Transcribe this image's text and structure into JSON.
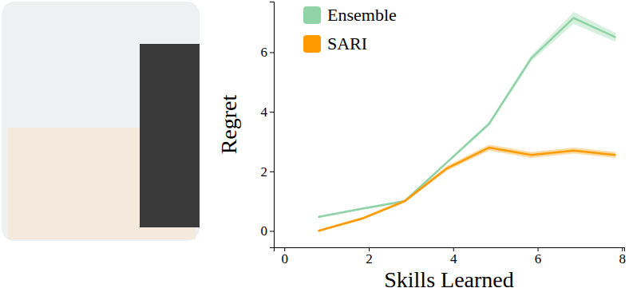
{
  "chart_data": {
    "type": "line",
    "x_label": "Skills Learned",
    "y_label": "Regret",
    "x": [
      0.8,
      1.85,
      2.85,
      3.85,
      4.85,
      5.85,
      6.85,
      7.85
    ],
    "series": [
      {
        "name": "Ensemble",
        "color": "#8fd3a7",
        "values": [
          0.47,
          0.75,
          1.0,
          2.3,
          3.6,
          5.8,
          7.15,
          6.5
        ],
        "errors": [
          0.03,
          0.03,
          0.05,
          0.05,
          0.07,
          0.1,
          0.2,
          0.15
        ]
      },
      {
        "name": "SARI",
        "color": "#ff9a00",
        "values": [
          0.0,
          0.42,
          1.0,
          2.1,
          2.8,
          2.55,
          2.7,
          2.55
        ],
        "errors": [
          0.03,
          0.05,
          0.05,
          0.08,
          0.1,
          0.1,
          0.1,
          0.1
        ]
      }
    ],
    "xlim": [
      -0.25,
      8.05
    ],
    "ylim": [
      -0.55,
      7.7
    ],
    "xticks": [
      0,
      2,
      4,
      6,
      8
    ],
    "yticks": [
      0,
      2,
      4,
      6
    ],
    "legend": "upper left"
  }
}
